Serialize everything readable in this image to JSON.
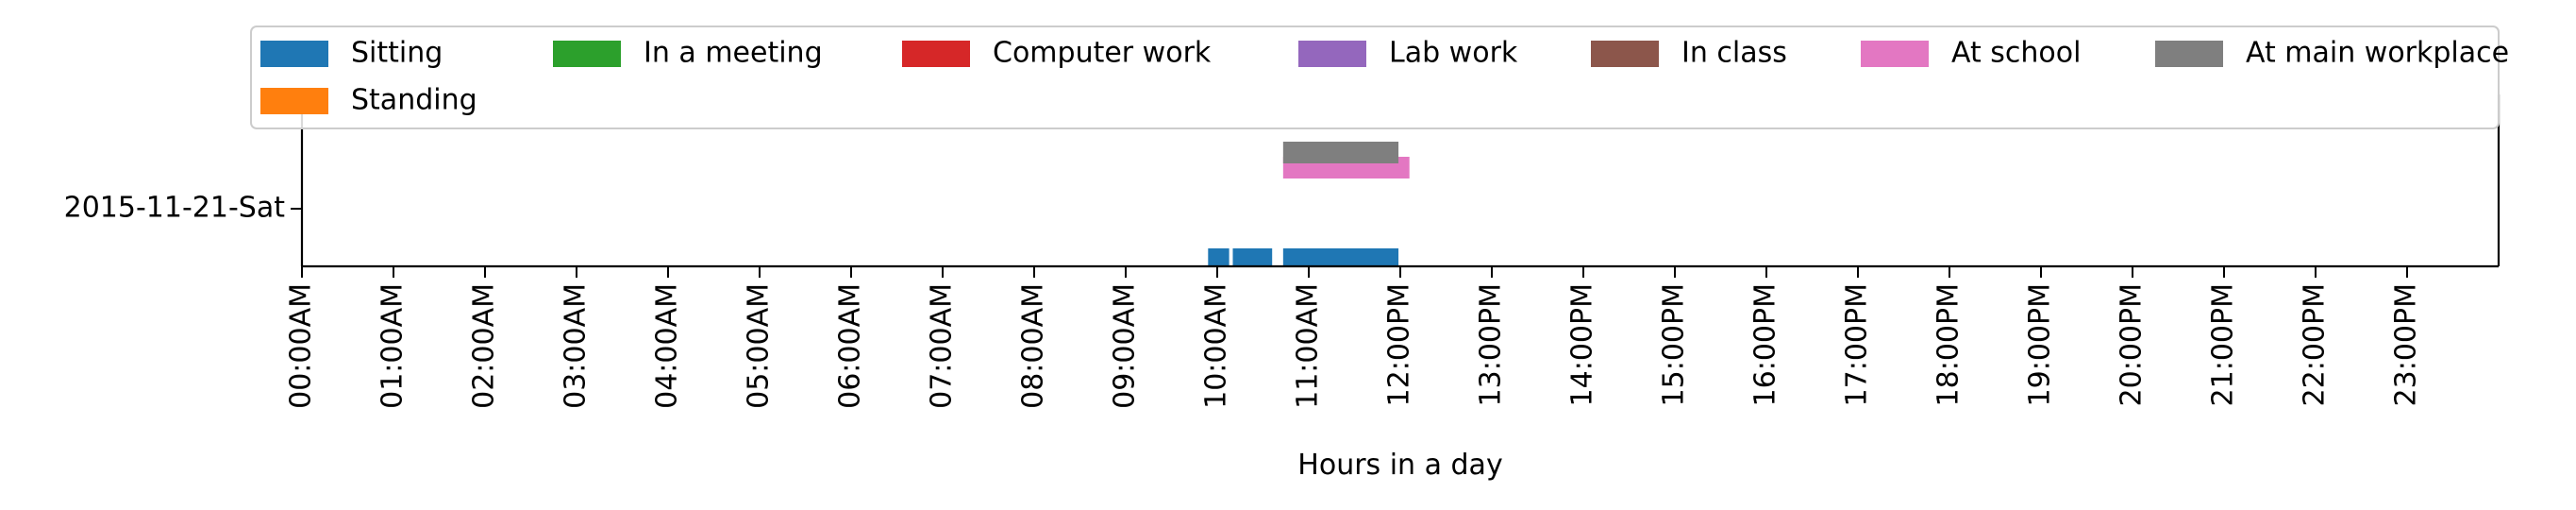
{
  "chart_data": {
    "type": "timeline",
    "xlabel": "Hours in a day",
    "ylabel": "",
    "xlim": [
      0,
      24
    ],
    "x_ticks": [
      "00:00AM",
      "01:00AM",
      "02:00AM",
      "03:00AM",
      "04:00AM",
      "05:00AM",
      "06:00AM",
      "07:00AM",
      "08:00AM",
      "09:00AM",
      "10:00AM",
      "11:00AM",
      "12:00PM",
      "13:00PM",
      "14:00PM",
      "15:00PM",
      "16:00PM",
      "17:00PM",
      "18:00PM",
      "19:00PM",
      "20:00PM",
      "21:00PM",
      "22:00PM",
      "23:00PM"
    ],
    "categories": [
      "2015-11-21-Sat"
    ],
    "legend_position": "top",
    "series": [
      {
        "name": "Sitting",
        "color": "#1f77b4",
        "intervals": [
          [
            9.9,
            10.13
          ],
          [
            10.17,
            10.6
          ],
          [
            10.72,
            11.98
          ]
        ]
      },
      {
        "name": "Standing",
        "color": "#ff7f0e",
        "intervals": []
      },
      {
        "name": "In a meeting",
        "color": "#2ca02c",
        "intervals": []
      },
      {
        "name": "Computer work",
        "color": "#d62728",
        "intervals": []
      },
      {
        "name": "Lab work",
        "color": "#9467bd",
        "intervals": []
      },
      {
        "name": "In class",
        "color": "#8c564b",
        "intervals": []
      },
      {
        "name": "At school",
        "color": "#e377c2",
        "intervals": [
          [
            10.72,
            12.1
          ]
        ]
      },
      {
        "name": "At main workplace",
        "color": "#7f7f7f",
        "intervals": [
          [
            10.72,
            11.98
          ]
        ]
      }
    ]
  }
}
